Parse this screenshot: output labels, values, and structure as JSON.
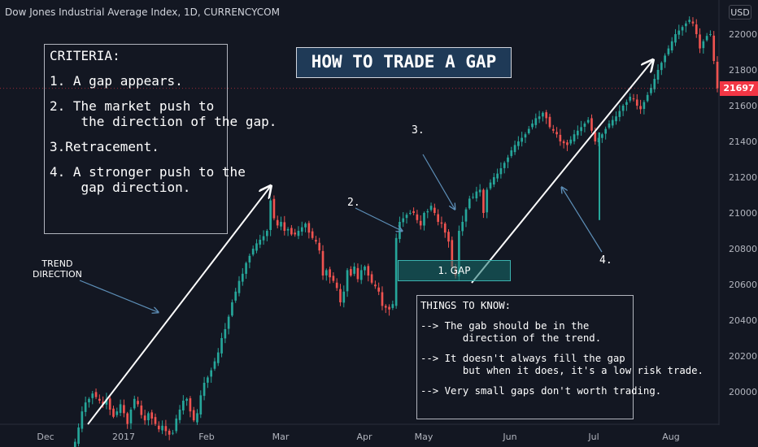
{
  "header": {
    "symbol_title": "Dow Jones Industrial Average Index, 1D, CURRENCYCOM",
    "currency_button": "USD",
    "last_price": "21697"
  },
  "criteria_box": {
    "lines": [
      "CRITERIA:",
      "1. A gap appears.",
      "2. The market push to\n    the direction of the gap.",
      "3.Retracement.",
      "4. A stronger push to the\n    gap direction."
    ]
  },
  "title_box": {
    "text": "HOW TO TRADE A GAP"
  },
  "gap_box": {
    "text": "1. GAP"
  },
  "things_box": {
    "lines": [
      "THINGS TO KNOW:",
      "--> The gab should be in the\n       direction of the trend.",
      "--> It doesn't always fill the gap\n       but when it does, it's a low risk trade.",
      "--> Very small gaps don't worth trading."
    ]
  },
  "annotations": {
    "trend_direction": "TREND\nDIRECTION",
    "step2": "2.",
    "step3": "3.",
    "step4": "4."
  },
  "colors": {
    "background": "#131722",
    "up_candle": "#26a69a",
    "down_candle": "#ef5350",
    "price_tag": "#f23645",
    "axis_text": "#b2b5be",
    "arrow_white": "#ffffff",
    "arrow_blue": "#5d8fb8"
  },
  "chart_data": {
    "type": "candlestick",
    "title": "Dow Jones Industrial Average Index, 1D, CURRENCYCOM",
    "x_ticks": [
      "Dec",
      "2017",
      "Feb",
      "Mar",
      "Apr",
      "May",
      "Jun",
      "Jul",
      "Aug"
    ],
    "y_ticks": [
      20000,
      20200,
      20400,
      20600,
      20800,
      21000,
      21200,
      21400,
      21600,
      21800,
      22000
    ],
    "ylim": [
      19830,
      22100
    ],
    "last_price": 21697,
    "grid": false,
    "closes": [
      19650,
      19720,
      19800,
      19890,
      19940,
      19960,
      19990,
      19970,
      19950,
      19930,
      19960,
      19900,
      19860,
      19890,
      19930,
      19880,
      19820,
      19900,
      19960,
      19930,
      19870,
      19840,
      19880,
      19850,
      19820,
      19790,
      19810,
      19780,
      19760,
      19770,
      19850,
      19900,
      19950,
      19960,
      19890,
      19840,
      19880,
      19980,
      20050,
      20080,
      20120,
      20170,
      20220,
      20300,
      20350,
      20420,
      20500,
      20560,
      20620,
      20660,
      20720,
      20760,
      20800,
      20830,
      20850,
      20870,
      20900,
      21070,
      20970,
      20930,
      20950,
      20900,
      20910,
      20880,
      20880,
      20900,
      20920,
      20940,
      20890,
      20860,
      20840,
      20790,
      20650,
      20680,
      20640,
      20620,
      20580,
      20500,
      20560,
      20680,
      20650,
      20700,
      20630,
      20680,
      20700,
      20650,
      20610,
      20590,
      20560,
      20480,
      20470,
      20460,
      20490,
      20860,
      20950,
      20970,
      20990,
      21000,
      21000,
      20960,
      20930,
      21000,
      21010,
      21040,
      21000,
      20950,
      20940,
      20890,
      20840,
      20700,
      20650,
      20900,
      20950,
      21020,
      21080,
      21090,
      21120,
      21130,
      21000,
      21130,
      21170,
      21200,
      21220,
      21250,
      21280,
      21310,
      21350,
      21380,
      21400,
      21420,
      21440,
      21470,
      21500,
      21530,
      21540,
      21560,
      21530,
      21480,
      21460,
      21440,
      21400,
      21390,
      21380,
      21410,
      21440,
      21460,
      21480,
      21500,
      21520,
      21460,
      21400,
      21420,
      21440,
      21470,
      21500,
      21520,
      21540,
      21570,
      21600,
      21620,
      21650,
      21640,
      21600,
      21580,
      21620,
      21660,
      21700,
      21750,
      21800,
      21840,
      21880,
      21920,
      21960,
      22000,
      22020,
      22040,
      22060,
      22080,
      22060,
      22000,
      21920,
      21960,
      21990,
      22000,
      21850,
      21697
    ]
  }
}
